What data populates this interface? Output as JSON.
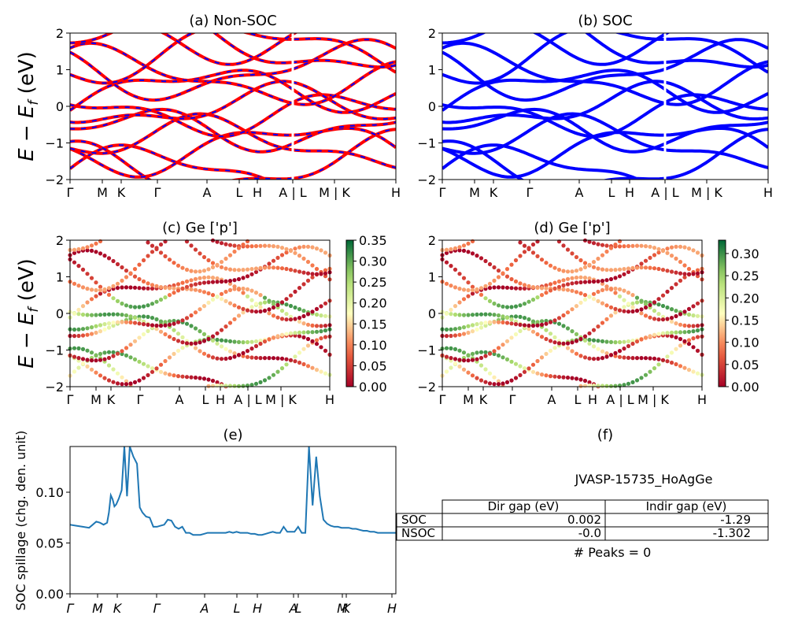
{
  "chart_data": [
    {
      "id": "a",
      "type": "line",
      "title": "(a) Non-SOC",
      "ylabel": "E - E_f (eV)",
      "ylim": [
        -2,
        2
      ],
      "yticks": [
        "2",
        "1",
        "0",
        "−1",
        "−2"
      ],
      "xtick_labels": [
        "Γ",
        "M",
        "K",
        "Γ",
        "A",
        "L",
        "H",
        "A | L",
        "M | K",
        "H"
      ],
      "series": [
        {
          "color": "#ff0000",
          "style": "solid",
          "note_color": "#0000ff"
        }
      ]
    },
    {
      "id": "b",
      "type": "line",
      "title": "(b) SOC",
      "ylim": [
        -2,
        2
      ],
      "yticks": [
        "2",
        "1",
        "0",
        "−1",
        "−2"
      ],
      "xtick_labels": [
        "Γ",
        "M",
        "K",
        "Γ",
        "A",
        "L",
        "H",
        "A | L",
        "M | K",
        "H"
      ],
      "series": [
        {
          "color": "#0000ff"
        }
      ]
    },
    {
      "id": "c",
      "type": "scatter",
      "title": "(c)  Ge ['p']",
      "ylabel": "E - E_f (eV)",
      "ylim": [
        -2,
        2
      ],
      "yticks": [
        "2",
        "1",
        "0",
        "−1",
        "−2"
      ],
      "xtick_labels": [
        "Γ",
        "M",
        "K",
        "Γ",
        "A",
        "L",
        "H",
        "A | L",
        "M | K",
        "H"
      ],
      "colorbar": {
        "min": 0.0,
        "max": 0.35,
        "ticks": [
          "0.35",
          "0.30",
          "0.25",
          "0.20",
          "0.15",
          "0.10",
          "0.05",
          "0.00"
        ],
        "cmap": "RdYlGn"
      }
    },
    {
      "id": "d",
      "type": "scatter",
      "title": "(d) Ge ['p']",
      "ylim": [
        -2,
        2
      ],
      "yticks": [
        "2",
        "1",
        "0",
        "−1",
        "−2"
      ],
      "xtick_labels": [
        "Γ",
        "M",
        "K",
        "Γ",
        "A",
        "L",
        "H",
        "A | L",
        "M | K",
        "H"
      ],
      "colorbar": {
        "min": 0.0,
        "max": 0.33,
        "ticks": [
          "0.30",
          "0.25",
          "0.20",
          "0.15",
          "0.10",
          "0.05",
          "0.00"
        ],
        "cmap": "RdYlGn"
      }
    },
    {
      "id": "e",
      "type": "line",
      "title": "(e)",
      "ylabel": "SOC spillage (chg. den. unit)",
      "ylim": [
        0.0,
        0.145
      ],
      "yticks": [
        "0.10",
        "0.05",
        "0.00"
      ],
      "xtick_labels": [
        "Γ",
        "M",
        "K",
        "Γ",
        "A",
        "L",
        "H",
        "A",
        "L",
        "M",
        "K",
        "H"
      ],
      "x": [
        0,
        0.35,
        0.7,
        1.05,
        1.25,
        1.45,
        1.65,
        1.85,
        2.05,
        2.15,
        2.25,
        2.35,
        2.45,
        2.55,
        2.7,
        2.85,
        3.0,
        3.15,
        3.3,
        3.5,
        3.7,
        3.85,
        4.0,
        4.2,
        4.4,
        4.6,
        4.8,
        5,
        5.2,
        5.4,
        5.6,
        5.8,
        6.0,
        6.2,
        6.4,
        6.6,
        6.8,
        7.0,
        7.2,
        7.4,
        7.6,
        7.8,
        8.0,
        8.2,
        8.4,
        8.6,
        8.8,
        9.0,
        9.2,
        9.4,
        9.6,
        9.8,
        10.0,
        10.2,
        10.4,
        10.6,
        10.8,
        11.0,
        11.2,
        11.4,
        11.6,
        11.8,
        12.0,
        12.2,
        12.4,
        12.6,
        12.8,
        13.0,
        13.2,
        13.4,
        13.6,
        13.8,
        14.0,
        14.2,
        14.4,
        14.6,
        14.8,
        15.0,
        15.2,
        15.4,
        15.6,
        15.8,
        16.0,
        16.2,
        16.4,
        16.6,
        16.8,
        17.0,
        17.2,
        17.4,
        17.6,
        17.8,
        18.0
      ],
      "y": [
        0.068,
        0.067,
        0.066,
        0.065,
        0.068,
        0.071,
        0.07,
        0.068,
        0.07,
        0.08,
        0.097,
        0.093,
        0.086,
        0.088,
        0.094,
        0.102,
        0.148,
        0.096,
        0.145,
        0.135,
        0.128,
        0.085,
        0.08,
        0.076,
        0.075,
        0.066,
        0.066,
        0.067,
        0.068,
        0.073,
        0.072,
        0.066,
        0.064,
        0.066,
        0.06,
        0.06,
        0.058,
        0.058,
        0.058,
        0.059,
        0.06,
        0.06,
        0.06,
        0.06,
        0.06,
        0.06,
        0.061,
        0.06,
        0.061,
        0.06,
        0.06,
        0.06,
        0.059,
        0.059,
        0.058,
        0.058,
        0.059,
        0.06,
        0.061,
        0.06,
        0.06,
        0.066,
        0.061,
        0.061,
        0.061,
        0.066,
        0.06,
        0.06,
        0.148,
        0.087,
        0.135,
        0.096,
        0.073,
        0.069,
        0.067,
        0.066,
        0.066,
        0.065,
        0.065,
        0.065,
        0.064,
        0.064,
        0.063,
        0.062,
        0.062,
        0.061,
        0.061,
        0.06,
        0.06,
        0.06,
        0.06,
        0.06,
        0.06
      ],
      "series": [
        {
          "color": "#1f77b4"
        }
      ]
    }
  ],
  "panel_f": {
    "title": "(f)",
    "material": "JVASP-15735_HoAgGe",
    "table": {
      "headers": [
        "Dir gap (eV)",
        "Indir gap (eV)"
      ],
      "rows": [
        {
          "label": "SOC",
          "dir": "0.002",
          "indir": "-1.29"
        },
        {
          "label": "NSOC",
          "dir": "-0.0",
          "indir": "-1.302"
        }
      ]
    },
    "peaks": "# Peaks = 0"
  }
}
